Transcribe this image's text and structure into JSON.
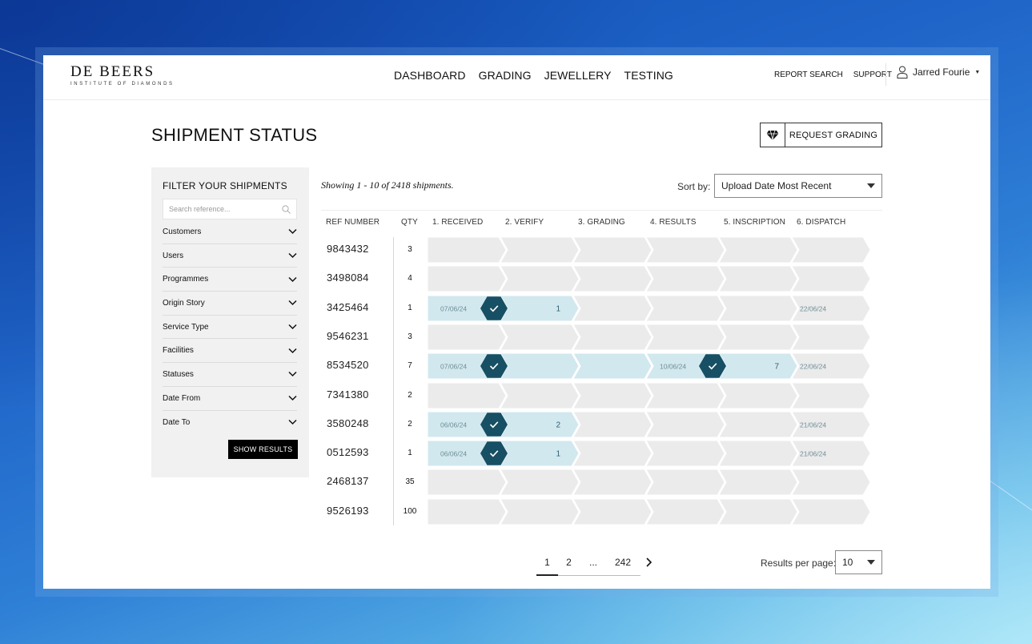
{
  "header": {
    "logo_main": "DE BEERS",
    "logo_sub": "INSTITUTE OF DIAMONDS",
    "nav": [
      "DASHBOARD",
      "GRADING",
      "JEWELLERY",
      "TESTING"
    ],
    "util": [
      "REPORT SEARCH",
      "SUPPORT"
    ],
    "user_name": "Jarred Fourie"
  },
  "page": {
    "title": "SHIPMENT STATUS",
    "request_button": "REQUEST GRADING"
  },
  "sidebar": {
    "title": "FILTER YOUR SHIPMENTS",
    "search_placeholder": "Search reference...",
    "filters": [
      "Customers",
      "Users",
      "Programmes",
      "Origin Story",
      "Service Type",
      "Facilities",
      "Statuses",
      "Date From",
      "Date To"
    ],
    "show_button": "SHOW RESULTS"
  },
  "results": {
    "showing": "Showing 1 - 10 of 2418 shipments.",
    "sort_label": "Sort by:",
    "sort_value": "Upload Date Most Recent"
  },
  "table": {
    "headers": [
      "REF NUMBER",
      "QTY",
      "1. RECEIVED",
      "2. VERIFY",
      "3. GRADING",
      "4. RESULTS",
      "5. INSCRIPTION",
      "6. DISPATCH"
    ],
    "rows": [
      {
        "ref": "9843432",
        "qty": "3",
        "track": null
      },
      {
        "ref": "3498084",
        "qty": "4",
        "track": null
      },
      {
        "ref": "3425464",
        "qty": "1",
        "track": {
          "received_date": "07/06/24",
          "fill_to_stage": 2,
          "check_stage": 1,
          "count_stage": 2,
          "count": "1",
          "dispatch": "22/06/24"
        }
      },
      {
        "ref": "9546231",
        "qty": "3",
        "track": null
      },
      {
        "ref": "8534520",
        "qty": "7",
        "track": {
          "received_date": "07/06/24",
          "fill_to_stage": 5,
          "check_stage": 1,
          "second_date": "10/06/24",
          "second_check_stage": 4,
          "count_stage": 5,
          "count": "7",
          "dispatch": "22/06/24"
        }
      },
      {
        "ref": "7341380",
        "qty": "2",
        "track": null
      },
      {
        "ref": "3580248",
        "qty": "2",
        "track": {
          "received_date": "06/06/24",
          "fill_to_stage": 2,
          "check_stage": 1,
          "count_stage": 2,
          "count": "2",
          "dispatch": "21/06/24"
        }
      },
      {
        "ref": "0512593",
        "qty": "1",
        "track": {
          "received_date": "06/06/24",
          "fill_to_stage": 2,
          "check_stage": 1,
          "count_stage": 2,
          "count": "1",
          "dispatch": "21/06/24"
        }
      },
      {
        "ref": "2468137",
        "qty": "35",
        "track": null
      },
      {
        "ref": "9526193",
        "qty": "100",
        "track": null
      }
    ]
  },
  "pagination": {
    "pages": [
      "1",
      "2",
      "...",
      "242"
    ],
    "current": "1",
    "rpp_label": "Results per page:",
    "rpp_value": "10"
  },
  "colors": {
    "track_empty": "#ebebeb",
    "track_filled": "#d2e8ef",
    "check_badge": "#174f64",
    "date_text": "#6f8f98",
    "count_text": "#2d5f70"
  }
}
